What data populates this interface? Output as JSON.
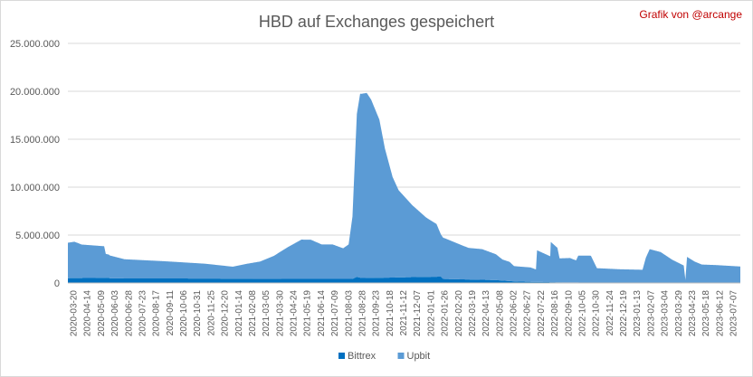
{
  "chart_data": {
    "type": "area",
    "stacked": true,
    "title": "HBD auf Exchanges gespeichert",
    "credit": "Grafik von @arcange",
    "xlabel": "",
    "ylabel": "",
    "ylim": [
      0,
      25000000
    ],
    "yticks": [
      0,
      5000000,
      10000000,
      15000000,
      20000000,
      25000000
    ],
    "ytick_labels": [
      "0",
      "5.000.000",
      "10.000.000",
      "15.000.000",
      "20.000.000",
      "25.000.000"
    ],
    "grid": true,
    "legend_position": "bottom",
    "x_range": [
      "2020-03-20",
      "2023-07-27"
    ],
    "xtick_labels": [
      "2020-03-20",
      "2020-04-14",
      "2020-05-09",
      "2020-06-03",
      "2020-06-28",
      "2020-07-23",
      "2020-08-17",
      "2020-09-11",
      "2020-10-06",
      "2020-10-31",
      "2020-11-25",
      "2020-12-20",
      "2021-01-14",
      "2021-02-08",
      "2021-03-05",
      "2021-03-30",
      "2021-04-24",
      "2021-05-19",
      "2021-06-14",
      "2021-07-09",
      "2021-08-03",
      "2021-08-28",
      "2021-09-23",
      "2021-10-18",
      "2021-11-12",
      "2021-12-07",
      "2022-01-01",
      "2022-01-26",
      "2022-02-20",
      "2022-03-19",
      "2022-04-13",
      "2022-05-08",
      "2022-06-02",
      "2022-06-27",
      "2022-07-22",
      "2022-08-16",
      "2022-09-10",
      "2022-10-05",
      "2022-10-30",
      "2022-11-24",
      "2022-12-19",
      "2023-01-13",
      "2023-02-07",
      "2023-03-04",
      "2023-03-29",
      "2023-04-23",
      "2023-05-18",
      "2023-06-12",
      "2023-07-07"
    ],
    "series": [
      {
        "name": "Bittrex",
        "color": "#0070c0",
        "points": [
          [
            "2020-03-20",
            500000
          ],
          [
            "2020-05-01",
            520000
          ],
          [
            "2020-06-03",
            540000
          ],
          [
            "2020-06-04",
            480000
          ],
          [
            "2020-10-01",
            470000
          ],
          [
            "2021-01-14",
            450000
          ],
          [
            "2021-06-01",
            420000
          ],
          [
            "2021-08-20",
            420000
          ],
          [
            "2021-08-28",
            640000
          ],
          [
            "2021-09-05",
            520000
          ],
          [
            "2021-10-18",
            550000
          ],
          [
            "2021-12-15",
            620000
          ],
          [
            "2022-01-28",
            660000
          ],
          [
            "2022-02-01",
            420000
          ],
          [
            "2022-05-08",
            300000
          ],
          [
            "2022-06-15",
            150000
          ],
          [
            "2022-09-10",
            60000
          ],
          [
            "2023-01-01",
            30000
          ],
          [
            "2023-07-27",
            20000
          ]
        ]
      },
      {
        "name": "Upbit",
        "color": "#5b9bd5",
        "points": [
          [
            "2020-03-20",
            3700000
          ],
          [
            "2020-04-01",
            3800000
          ],
          [
            "2020-04-14",
            3500000
          ],
          [
            "2020-05-25",
            3300000
          ],
          [
            "2020-05-28",
            2500000
          ],
          [
            "2020-07-01",
            2000000
          ],
          [
            "2020-09-11",
            1800000
          ],
          [
            "2020-11-25",
            1550000
          ],
          [
            "2021-01-14",
            1250000
          ],
          [
            "2021-02-08",
            1550000
          ],
          [
            "2021-03-05",
            1800000
          ],
          [
            "2021-03-30",
            2400000
          ],
          [
            "2021-04-24",
            3300000
          ],
          [
            "2021-05-19",
            4100000
          ],
          [
            "2021-06-05",
            4100000
          ],
          [
            "2021-06-25",
            3600000
          ],
          [
            "2021-07-15",
            3600000
          ],
          [
            "2021-08-03",
            3200000
          ],
          [
            "2021-08-13",
            3600000
          ],
          [
            "2021-08-20",
            6500000
          ],
          [
            "2021-08-28",
            17000000
          ],
          [
            "2021-09-03",
            19200000
          ],
          [
            "2021-09-15",
            19300000
          ],
          [
            "2021-09-23",
            18600000
          ],
          [
            "2021-10-08",
            16500000
          ],
          [
            "2021-10-18",
            13500000
          ],
          [
            "2021-11-01",
            10500000
          ],
          [
            "2021-11-12",
            9100000
          ],
          [
            "2021-12-07",
            7500000
          ],
          [
            "2022-01-01",
            6200000
          ],
          [
            "2022-01-20",
            5500000
          ],
          [
            "2022-01-28",
            4400000
          ],
          [
            "2022-02-20",
            3900000
          ],
          [
            "2022-03-19",
            3300000
          ],
          [
            "2022-04-13",
            3200000
          ],
          [
            "2022-05-08",
            2700000
          ],
          [
            "2022-05-20",
            2200000
          ],
          [
            "2022-06-02",
            2000000
          ],
          [
            "2022-06-10",
            1600000
          ],
          [
            "2022-07-10",
            1500000
          ],
          [
            "2022-07-20",
            1300000
          ],
          [
            "2022-07-22",
            3300000
          ],
          [
            "2022-08-15",
            2700000
          ],
          [
            "2022-08-16",
            4200000
          ],
          [
            "2022-08-28",
            3600000
          ],
          [
            "2022-09-01",
            2500000
          ],
          [
            "2022-09-20",
            2550000
          ],
          [
            "2022-10-01",
            2300000
          ],
          [
            "2022-10-05",
            2800000
          ],
          [
            "2022-10-28",
            2800000
          ],
          [
            "2022-11-08",
            1500000
          ],
          [
            "2022-12-19",
            1400000
          ],
          [
            "2023-01-30",
            1350000
          ],
          [
            "2023-02-05",
            2600000
          ],
          [
            "2023-02-12",
            3500000
          ],
          [
            "2023-03-04",
            3200000
          ],
          [
            "2023-03-25",
            2400000
          ],
          [
            "2023-04-15",
            1800000
          ],
          [
            "2023-04-18",
            300000
          ],
          [
            "2023-04-21",
            2700000
          ],
          [
            "2023-05-05",
            2200000
          ],
          [
            "2023-05-18",
            1900000
          ],
          [
            "2023-06-12",
            1850000
          ],
          [
            "2023-07-27",
            1700000
          ]
        ]
      }
    ]
  }
}
